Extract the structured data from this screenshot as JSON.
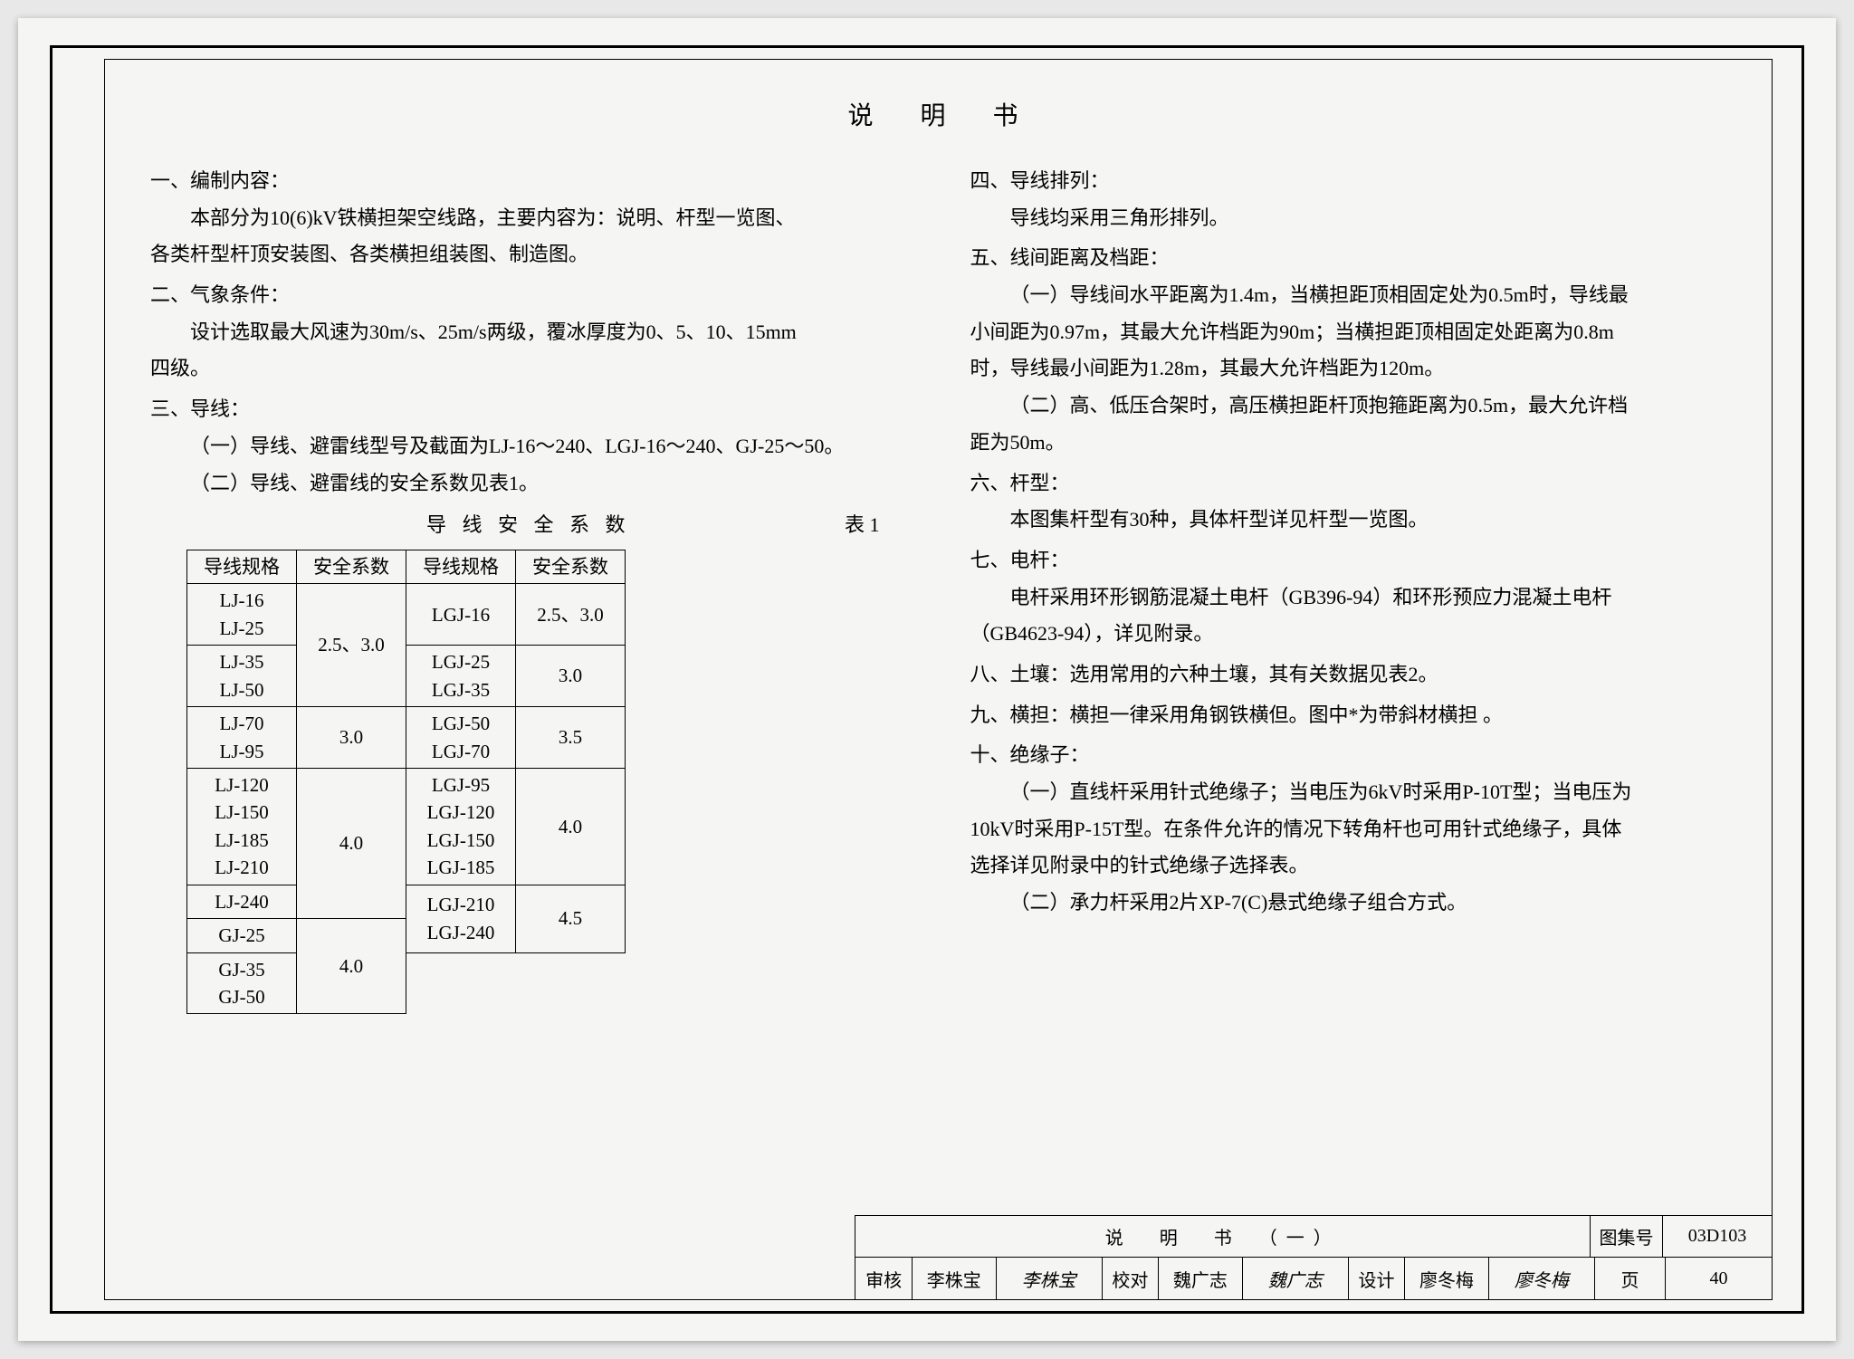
{
  "doc_title": "说　明　书",
  "left": {
    "s1_head": "一、编制内容：",
    "s1_p1": "本部分为10(6)kV铁横担架空线路，主要内容为：说明、杆型一览图、",
    "s1_p2": "各类杆型杆顶安装图、各类横担组装图、制造图。",
    "s2_head": "二、气象条件：",
    "s2_p1": "设计选取最大风速为30m/s、25m/s两级，覆冰厚度为0、5、10、15mm",
    "s2_p2": "四级。",
    "s3_head": "三、导线：",
    "s3_p1": "（一）导线、避雷线型号及截面为LJ-16～240、LGJ-16～240、GJ-25～50。",
    "s3_p2": "（二）导线、避雷线的安全系数见表1。"
  },
  "table1": {
    "caption": "导 线 安 全 系 数",
    "caption_num": "表 1",
    "headers": [
      "导线规格",
      "安全系数",
      "导线规格",
      "安全系数"
    ],
    "rows": [
      {
        "c0": "LJ-16\nLJ-25",
        "c1": "2.5、3.0",
        "c1_rows": 2,
        "c2": "LGJ-16",
        "c3": "2.5、3.0"
      },
      {
        "c0": "LJ-35\nLJ-50",
        "c2": "LGJ-25\nLGJ-35",
        "c3": "3.0"
      },
      {
        "c0": "LJ-70\nLJ-95",
        "c1": "3.0",
        "c2": "LGJ-50\nLGJ-70",
        "c3": "3.5"
      },
      {
        "c0": "LJ-120\nLJ-150\nLJ-185\nLJ-210",
        "c1": "4.0",
        "c1_rows": 2,
        "c2": "LGJ-95\nLGJ-120\nLGJ-150\nLGJ-185",
        "c3": "4.0"
      },
      {
        "c0": "LJ-240",
        "c2": "LGJ-210\nLGJ-240",
        "c2_rows": 2,
        "c3": "4.5",
        "c3_rows": 2
      },
      {
        "c0": "GJ-25",
        "c1": "4.0",
        "c1_rows": 2
      },
      {
        "c0": "GJ-35\nGJ-50"
      }
    ]
  },
  "right": {
    "s4_head": "四、导线排列：",
    "s4_p1": "导线均采用三角形排列。",
    "s5_head": "五、线间距离及档距：",
    "s5_p1": "（一）导线间水平距离为1.4m，当横担距顶相固定处为0.5m时，导线最",
    "s5_p2": "小间距为0.97m，其最大允许档距为90m；当横担距顶相固定处距离为0.8m",
    "s5_p3": "时，导线最小间距为1.28m，其最大允许档距为120m。",
    "s5_p4": "（二）高、低压合架时，高压横担距杆顶抱箍距离为0.5m，最大允许档",
    "s5_p5": "距为50m。",
    "s6_head": "六、杆型：",
    "s6_p1": "本图集杆型有30种，具体杆型详见杆型一览图。",
    "s7_head": "七、电杆：",
    "s7_p1": "电杆采用环形钢筋混凝土电杆（GB396-94）和环形预应力混凝土电杆",
    "s7_p2": "（GB4623-94），详见附录。",
    "s8_head": "八、土壤：选用常用的六种土壤，其有关数据见表2。",
    "s9_head": "九、横担：横担一律采用角钢铁横但。图中*为带斜材横担 。",
    "s10_head": "十、绝缘子：",
    "s10_p1": "（一）直线杆采用针式绝缘子；当电压为6kV时采用P-10T型；当电压为",
    "s10_p2": "10kV时采用P-15T型。在条件允许的情况下转角杆也可用针式绝缘子，具体",
    "s10_p3": "选择详见附录中的针式绝缘子选择表。",
    "s10_p4": "（二）承力杆采用2片XP-7(C)悬式绝缘子组合方式。"
  },
  "titleblock": {
    "sheet_title": "说　明　书　（一）",
    "collection_label": "图集号",
    "collection_no": "03D103",
    "review_label": "审核",
    "reviewer": "李株宝",
    "reviewer_sign": "李株宝",
    "check_label": "校对",
    "checker": "魏广志",
    "checker_sign": "魏广志",
    "design_label": "设计",
    "designer": "廖冬梅",
    "designer_sign": "廖冬梅",
    "page_label": "页",
    "page_no": "40"
  },
  "colors": {
    "bg": "#f5f5f3",
    "ink": "#000000",
    "page_shadow": "#e8e8e8"
  }
}
